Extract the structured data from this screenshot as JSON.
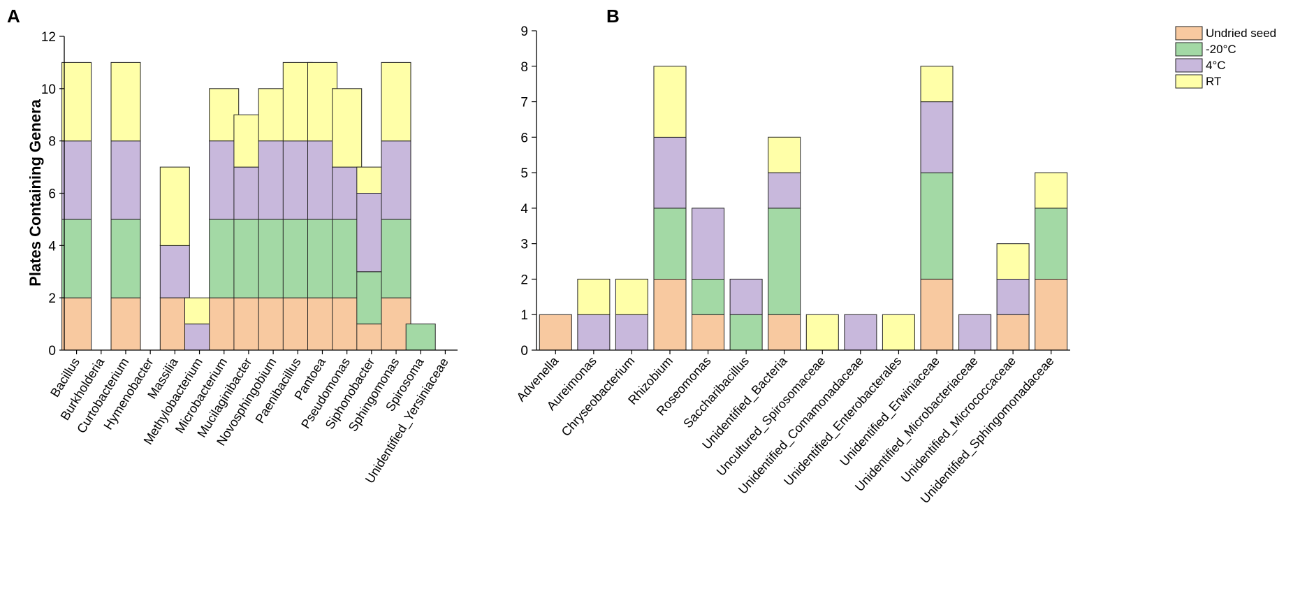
{
  "figure": {
    "panels": [
      "A",
      "B"
    ]
  },
  "chart_data": [
    {
      "type": "bar",
      "stacked": true,
      "panel": "A",
      "title": "",
      "xlabel": "",
      "ylabel": "Plates Containing Genera",
      "ylim": [
        0,
        12
      ],
      "yticks": [
        0,
        2,
        4,
        6,
        8,
        10,
        12
      ],
      "grid": false,
      "categories": [
        "Bacillus",
        "Burkholderia",
        "Curtobacterium",
        "Hymenobacter",
        "Massilia",
        "Methylobacterium",
        "Microbacterium",
        "Mucilaginibacter",
        "Novosphingobium",
        "Paenibacillus",
        "Pantoea",
        "Pseudomonas",
        "Siphonobacter",
        "Sphingomonas",
        "Spirosoma",
        "Unidentified_Yersiniaceae"
      ],
      "series": [
        {
          "name": "Undried seed",
          "color": "#f8c9a0",
          "values": [
            2,
            0,
            2,
            0,
            2,
            0,
            2,
            2,
            2,
            2,
            2,
            2,
            1,
            2,
            0,
            0
          ]
        },
        {
          "name": "-20°C",
          "color": "#a3d9a5",
          "values": [
            3,
            0,
            3,
            0,
            0,
            0,
            3,
            3,
            3,
            3,
            3,
            3,
            2,
            3,
            1,
            0
          ]
        },
        {
          "name": "4°C",
          "color": "#c8b8dc",
          "values": [
            3,
            0,
            3,
            0,
            2,
            1,
            3,
            2,
            3,
            3,
            3,
            2,
            3,
            3,
            0,
            0
          ]
        },
        {
          "name": "RT",
          "color": "#ffffa8",
          "values": [
            3,
            0,
            3,
            0,
            3,
            1,
            2,
            2,
            2,
            3,
            3,
            3,
            1,
            3,
            0,
            0
          ]
        }
      ]
    },
    {
      "type": "bar",
      "stacked": true,
      "panel": "B",
      "title": "",
      "xlabel": "",
      "ylabel": "",
      "ylim": [
        0,
        9
      ],
      "yticks": [
        0,
        1,
        2,
        3,
        4,
        5,
        6,
        7,
        8,
        9
      ],
      "grid": false,
      "legend": "top-right",
      "categories": [
        "Advenella",
        "Aureimonas",
        "Chryseobacterium",
        "Rhizobium",
        "Roseomonas",
        "Saccharibacillus",
        "Unidentified_Bacteria",
        "Uncultured_Spirosomaceae",
        "Unidentified_Comamonadaceae",
        "Unidentified_Enterobacterales",
        "Unidentified_Erwiniaceae",
        "Unidentified_Microbacteriaceae",
        "Unidentified_Micrococcaceae",
        "Unidentified_Sphingomonadaceae"
      ],
      "series": [
        {
          "name": "Undried seed",
          "color": "#f8c9a0",
          "values": [
            1,
            0,
            0,
            2,
            1,
            0,
            1,
            0,
            0,
            0,
            2,
            0,
            1,
            2
          ]
        },
        {
          "name": "-20°C",
          "color": "#a3d9a5",
          "values": [
            0,
            0,
            0,
            2,
            1,
            1,
            3,
            0,
            0,
            0,
            3,
            0,
            0,
            2
          ]
        },
        {
          "name": "4°C",
          "color": "#c8b8dc",
          "values": [
            0,
            1,
            1,
            2,
            2,
            1,
            1,
            0,
            1,
            0,
            2,
            1,
            1,
            0
          ]
        },
        {
          "name": "RT",
          "color": "#ffffa8",
          "values": [
            0,
            1,
            1,
            2,
            0,
            0,
            1,
            1,
            0,
            1,
            1,
            0,
            1,
            1
          ]
        }
      ]
    }
  ]
}
